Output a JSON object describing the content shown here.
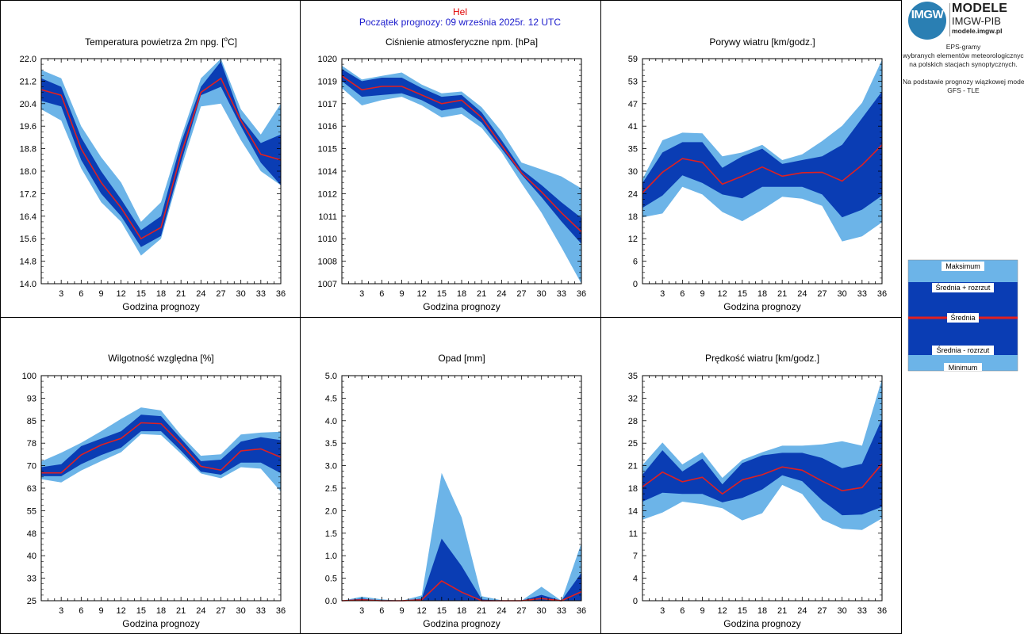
{
  "header": {
    "station": "Hel",
    "forecast_start": "Początek prognozy: 09 września 2025r. 12 UTC",
    "station_color": "#e00000",
    "forecast_color": "#1a1acc"
  },
  "logo": {
    "badge": "IMGW",
    "title": "MODELE",
    "subtitle": "IMGW-PIB",
    "url": "modele.imgw.pl"
  },
  "info": {
    "line1": "EPS-gramy",
    "line2": "wybranych elementów meteorologicznych",
    "line3": "na polskich stacjach  synoptycznych.",
    "line4": "Na podstawie prognozy wiązkowej modelu",
    "line5": "GFS - TLE"
  },
  "legend": {
    "max": "Maksimum",
    "mean_plus": "Średnia + rozrzut",
    "mean": "Średnia",
    "mean_minus": "Średnia - rozrzut",
    "min": "Minimum"
  },
  "colors": {
    "outer_band": "#6cb4e8",
    "inner_band": "#0a3db4",
    "mean_line": "#e02020",
    "frame": "#000000"
  },
  "chart_data": [
    {
      "id": "temperature",
      "type": "area",
      "title": "Temperatura powietrza 2m npg. [",
      "title_sup": "o",
      "title_end": "C]",
      "xlabel": "Godzina prognozy",
      "x": [
        0,
        3,
        6,
        9,
        12,
        15,
        18,
        21,
        24,
        27,
        30,
        33,
        36
      ],
      "xticks": [
        "3",
        "6",
        "9",
        "12",
        "15",
        "18",
        "21",
        "24",
        "27",
        "30",
        "33",
        "36"
      ],
      "ylim": [
        14.0,
        22.0
      ],
      "yticks": [
        "14.0",
        "14.8",
        "15.6",
        "16.4",
        "17.2",
        "18.0",
        "18.8",
        "19.6",
        "20.4",
        "21.2",
        "22.0"
      ],
      "series": [
        {
          "role": "min",
          "values": [
            20.2,
            19.8,
            18.1,
            16.9,
            16.2,
            15.0,
            15.6,
            18.1,
            20.3,
            20.4,
            19.1,
            18.0,
            17.5
          ]
        },
        {
          "role": "mean_minus",
          "values": [
            20.5,
            20.3,
            18.4,
            17.2,
            16.4,
            15.3,
            15.7,
            18.3,
            20.7,
            21.0,
            19.6,
            18.3,
            17.5
          ]
        },
        {
          "role": "mean",
          "values": [
            20.9,
            20.7,
            18.8,
            17.6,
            16.7,
            15.6,
            16.0,
            18.6,
            20.8,
            21.3,
            19.8,
            18.6,
            18.4
          ]
        },
        {
          "role": "mean_plus",
          "values": [
            21.3,
            21.0,
            19.2,
            18.0,
            17.0,
            15.9,
            16.4,
            19.0,
            21.0,
            21.9,
            19.9,
            19.0,
            19.3
          ]
        },
        {
          "role": "max",
          "values": [
            21.6,
            21.3,
            19.6,
            18.5,
            17.6,
            16.2,
            16.9,
            19.2,
            21.3,
            22.0,
            20.2,
            19.3,
            20.4
          ]
        }
      ]
    },
    {
      "id": "pressure",
      "type": "area",
      "title": "Ciśnienie atmosferyczne npm. [hPa]",
      "xlabel": "Godzina prognozy",
      "x": [
        0,
        3,
        6,
        9,
        12,
        15,
        18,
        21,
        24,
        27,
        30,
        33,
        36
      ],
      "xticks": [
        "3",
        "6",
        "9",
        "12",
        "15",
        "18",
        "21",
        "24",
        "27",
        "30",
        "33",
        "36"
      ],
      "ylim": [
        1007,
        1020
      ],
      "yticks": [
        "1007",
        "1008",
        "1010",
        "1011",
        "1012",
        "1014",
        "1015",
        "1016",
        "1017",
        "1019",
        "1020"
      ],
      "ytick_values": [
        1007.0,
        1008.3,
        1009.6,
        1010.9,
        1012.2,
        1013.5,
        1014.8,
        1016.1,
        1017.4,
        1018.7,
        1020.0
      ],
      "series": [
        {
          "role": "min",
          "values": [
            1018.3,
            1017.3,
            1017.6,
            1017.8,
            1017.3,
            1016.6,
            1016.8,
            1016.0,
            1014.6,
            1012.8,
            1011.1,
            1009.1,
            1006.9
          ]
        },
        {
          "role": "mean_minus",
          "values": [
            1018.7,
            1017.8,
            1017.9,
            1018.0,
            1017.6,
            1017.0,
            1017.2,
            1016.3,
            1014.8,
            1013.3,
            1012.0,
            1010.6,
            1009.3
          ]
        },
        {
          "role": "mean",
          "values": [
            1019.0,
            1018.2,
            1018.4,
            1018.4,
            1017.9,
            1017.4,
            1017.6,
            1016.6,
            1015.0,
            1013.4,
            1012.3,
            1011.1,
            1010.0
          ]
        },
        {
          "role": "mean_plus",
          "values": [
            1019.4,
            1018.7,
            1018.9,
            1018.9,
            1018.3,
            1017.8,
            1017.9,
            1016.9,
            1015.3,
            1013.6,
            1012.7,
            1011.7,
            1010.8
          ]
        },
        {
          "role": "max",
          "values": [
            1019.6,
            1018.8,
            1019.0,
            1019.2,
            1018.5,
            1018.0,
            1018.1,
            1017.2,
            1015.8,
            1014.0,
            1013.6,
            1013.2,
            1012.5
          ]
        }
      ]
    },
    {
      "id": "gusts",
      "type": "area",
      "title": "Porywy wiatru [km/godz.]",
      "xlabel": "Godzina prognozy",
      "x": [
        0,
        3,
        6,
        9,
        12,
        15,
        18,
        21,
        24,
        27,
        30,
        33,
        36
      ],
      "xticks": [
        "3",
        "6",
        "9",
        "12",
        "15",
        "18",
        "21",
        "24",
        "27",
        "30",
        "33",
        "36"
      ],
      "ylim": [
        0,
        59
      ],
      "yticks": [
        "0",
        "6",
        "12",
        "18",
        "24",
        "30",
        "35",
        "41",
        "47",
        "53",
        "59"
      ],
      "ytick_values": [
        0,
        5.9,
        11.8,
        17.7,
        23.6,
        29.5,
        35.4,
        41.3,
        47.2,
        53.1,
        59.0
      ],
      "series": [
        {
          "role": "min",
          "values": [
            17.4,
            18.4,
            25.4,
            23.4,
            18.8,
            16.4,
            19.4,
            22.8,
            22.3,
            20.4,
            11.1,
            12.4,
            16.1
          ]
        },
        {
          "role": "mean_minus",
          "values": [
            19.9,
            23.1,
            28.4,
            26.4,
            23.4,
            22.4,
            25.4,
            25.4,
            25.4,
            23.4,
            17.4,
            19.4,
            23.1
          ]
        },
        {
          "role": "mean",
          "values": [
            23.8,
            29.2,
            32.8,
            31.8,
            26.1,
            28.2,
            30.6,
            28.2,
            29.1,
            29.2,
            26.9,
            31.1,
            36.4
          ]
        },
        {
          "role": "mean_plus",
          "values": [
            26.4,
            34.4,
            37.1,
            37.1,
            30.4,
            33.4,
            35.4,
            31.4,
            32.4,
            33.4,
            36.4,
            43.4,
            50.4
          ]
        },
        {
          "role": "max",
          "values": [
            27.4,
            37.6,
            39.6,
            39.4,
            33.4,
            34.4,
            36.4,
            32.4,
            33.9,
            37.4,
            41.4,
            47.4,
            58.7
          ]
        }
      ]
    },
    {
      "id": "humidity",
      "type": "area",
      "title": "Wilgotność względna [%]",
      "xlabel": "Godzina prognozy",
      "x": [
        0,
        3,
        6,
        9,
        12,
        15,
        18,
        21,
        24,
        27,
        30,
        33,
        36
      ],
      "xticks": [
        "3",
        "6",
        "9",
        "12",
        "15",
        "18",
        "21",
        "24",
        "27",
        "30",
        "33",
        "36"
      ],
      "ylim": [
        25,
        100
      ],
      "yticks": [
        "25",
        "33",
        "40",
        "48",
        "55",
        "63",
        "70",
        "78",
        "85",
        "93",
        "100"
      ],
      "ytick_values": [
        25,
        32.5,
        40,
        47.5,
        55,
        62.5,
        70,
        77.5,
        85,
        92.5,
        100
      ],
      "series": [
        {
          "role": "min",
          "values": [
            65.5,
            64.4,
            68.4,
            71.5,
            74.5,
            80.5,
            80.2,
            74.0,
            67.4,
            65.8,
            69.5,
            69.0,
            61.4
          ]
        },
        {
          "role": "mean_minus",
          "values": [
            66.5,
            66.5,
            70.5,
            73.5,
            76.0,
            81.5,
            81.5,
            75.0,
            68.0,
            67.0,
            71.0,
            71.0,
            67.5
          ]
        },
        {
          "role": "mean",
          "values": [
            67.6,
            67.6,
            73.6,
            76.9,
            79.1,
            84.3,
            84.0,
            77.2,
            69.8,
            68.5,
            74.9,
            75.6,
            72.8
          ]
        },
        {
          "role": "mean_plus",
          "values": [
            69.5,
            70.5,
            76.5,
            79.0,
            81.5,
            87.0,
            86.5,
            79.0,
            71.5,
            72.0,
            78.0,
            79.5,
            78.5
          ]
        },
        {
          "role": "max",
          "values": [
            71.4,
            74.3,
            77.6,
            81.5,
            85.6,
            89.4,
            88.4,
            80.2,
            73.3,
            73.8,
            80.4,
            81.0,
            81.3
          ]
        }
      ]
    },
    {
      "id": "precipitation",
      "type": "area",
      "title": "Opad [mm]",
      "xlabel": "Godzina prognozy",
      "x": [
        0,
        3,
        6,
        9,
        12,
        15,
        18,
        21,
        24,
        27,
        30,
        33,
        36
      ],
      "xticks": [
        "3",
        "6",
        "9",
        "12",
        "15",
        "18",
        "21",
        "24",
        "27",
        "30",
        "33",
        "36"
      ],
      "ylim": [
        0,
        5
      ],
      "yticks": [
        "0.0",
        "0.5",
        "1.0",
        "1.5",
        "2.0",
        "2.5",
        "3.0",
        "3.5",
        "4.0",
        "4.5",
        "5.0"
      ],
      "series": [
        {
          "role": "min",
          "values": [
            0,
            0,
            0,
            0,
            0,
            0,
            0,
            0,
            0,
            0,
            0,
            0,
            0
          ]
        },
        {
          "role": "mean_minus",
          "values": [
            0,
            0,
            0,
            0,
            0,
            0,
            0,
            0,
            0,
            0,
            0,
            0,
            0
          ]
        },
        {
          "role": "mean",
          "values": [
            0.0,
            0.02,
            0.0,
            0.0,
            0.02,
            0.44,
            0.19,
            0.0,
            0.0,
            0.0,
            0.05,
            0.0,
            0.2
          ]
        },
        {
          "role": "mean_plus",
          "values": [
            0.0,
            0.05,
            0.0,
            0.0,
            0.05,
            1.38,
            0.77,
            0.03,
            0.0,
            0.0,
            0.13,
            0.0,
            0.62
          ]
        },
        {
          "role": "max",
          "values": [
            0.0,
            0.09,
            0.03,
            0.0,
            0.12,
            2.84,
            1.85,
            0.1,
            0.01,
            0.0,
            0.31,
            0.0,
            1.28
          ]
        }
      ]
    },
    {
      "id": "wind-speed",
      "type": "area",
      "title": "Prędkość wiatru [km/godz.]",
      "xlabel": "Godzina prognozy",
      "x": [
        0,
        3,
        6,
        9,
        12,
        15,
        18,
        21,
        24,
        27,
        30,
        33,
        36
      ],
      "xticks": [
        "3",
        "6",
        "9",
        "12",
        "15",
        "18",
        "21",
        "24",
        "27",
        "30",
        "33",
        "36"
      ],
      "ylim": [
        0,
        35
      ],
      "yticks": [
        "0",
        "4",
        "7",
        "11",
        "14",
        "18",
        "21",
        "25",
        "28",
        "32",
        "35"
      ],
      "ytick_values": [
        0,
        3.5,
        7,
        10.5,
        14,
        17.5,
        21,
        24.5,
        28,
        31.5,
        35
      ],
      "series": [
        {
          "role": "min",
          "values": [
            12.6,
            13.7,
            15.4,
            15.0,
            14.4,
            12.5,
            13.6,
            18.0,
            16.6,
            12.6,
            11.2,
            11.0,
            12.8
          ]
        },
        {
          "role": "mean_minus",
          "values": [
            15.4,
            16.8,
            16.6,
            16.6,
            15.3,
            16.0,
            17.3,
            19.5,
            18.6,
            15.6,
            13.3,
            13.4,
            14.6
          ]
        },
        {
          "role": "mean",
          "values": [
            17.7,
            20.0,
            18.5,
            19.2,
            16.6,
            18.8,
            19.6,
            20.8,
            20.3,
            18.6,
            17.1,
            17.6,
            21.3
          ]
        },
        {
          "role": "mean_plus",
          "values": [
            19.6,
            23.4,
            20.1,
            22.1,
            18.1,
            21.4,
            22.6,
            23.0,
            23.0,
            22.2,
            20.6,
            21.3,
            28.3
          ]
        },
        {
          "role": "max",
          "values": [
            21.1,
            24.6,
            21.2,
            23.1,
            19.1,
            21.9,
            23.1,
            24.1,
            24.1,
            24.3,
            24.8,
            24.1,
            34.5
          ]
        }
      ]
    }
  ]
}
